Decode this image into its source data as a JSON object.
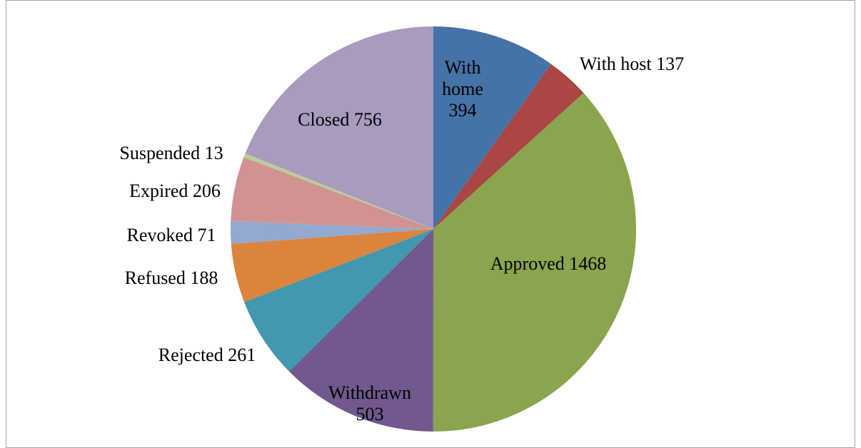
{
  "chart_data": {
    "type": "pie",
    "categories": [
      "With home",
      "With host",
      "Approved",
      "Withdrawn",
      "Rejected",
      "Refused",
      "Revoked",
      "Expired",
      "Suspended",
      "Closed"
    ],
    "values": [
      394,
      137,
      1468,
      503,
      261,
      188,
      71,
      206,
      13,
      756
    ],
    "colors": [
      "#4572a7",
      "#aa4643",
      "#89a54e",
      "#71588f",
      "#4198af",
      "#db843d",
      "#93a9cf",
      "#d19392",
      "#b9cd96",
      "#a99bbd"
    ]
  }
}
